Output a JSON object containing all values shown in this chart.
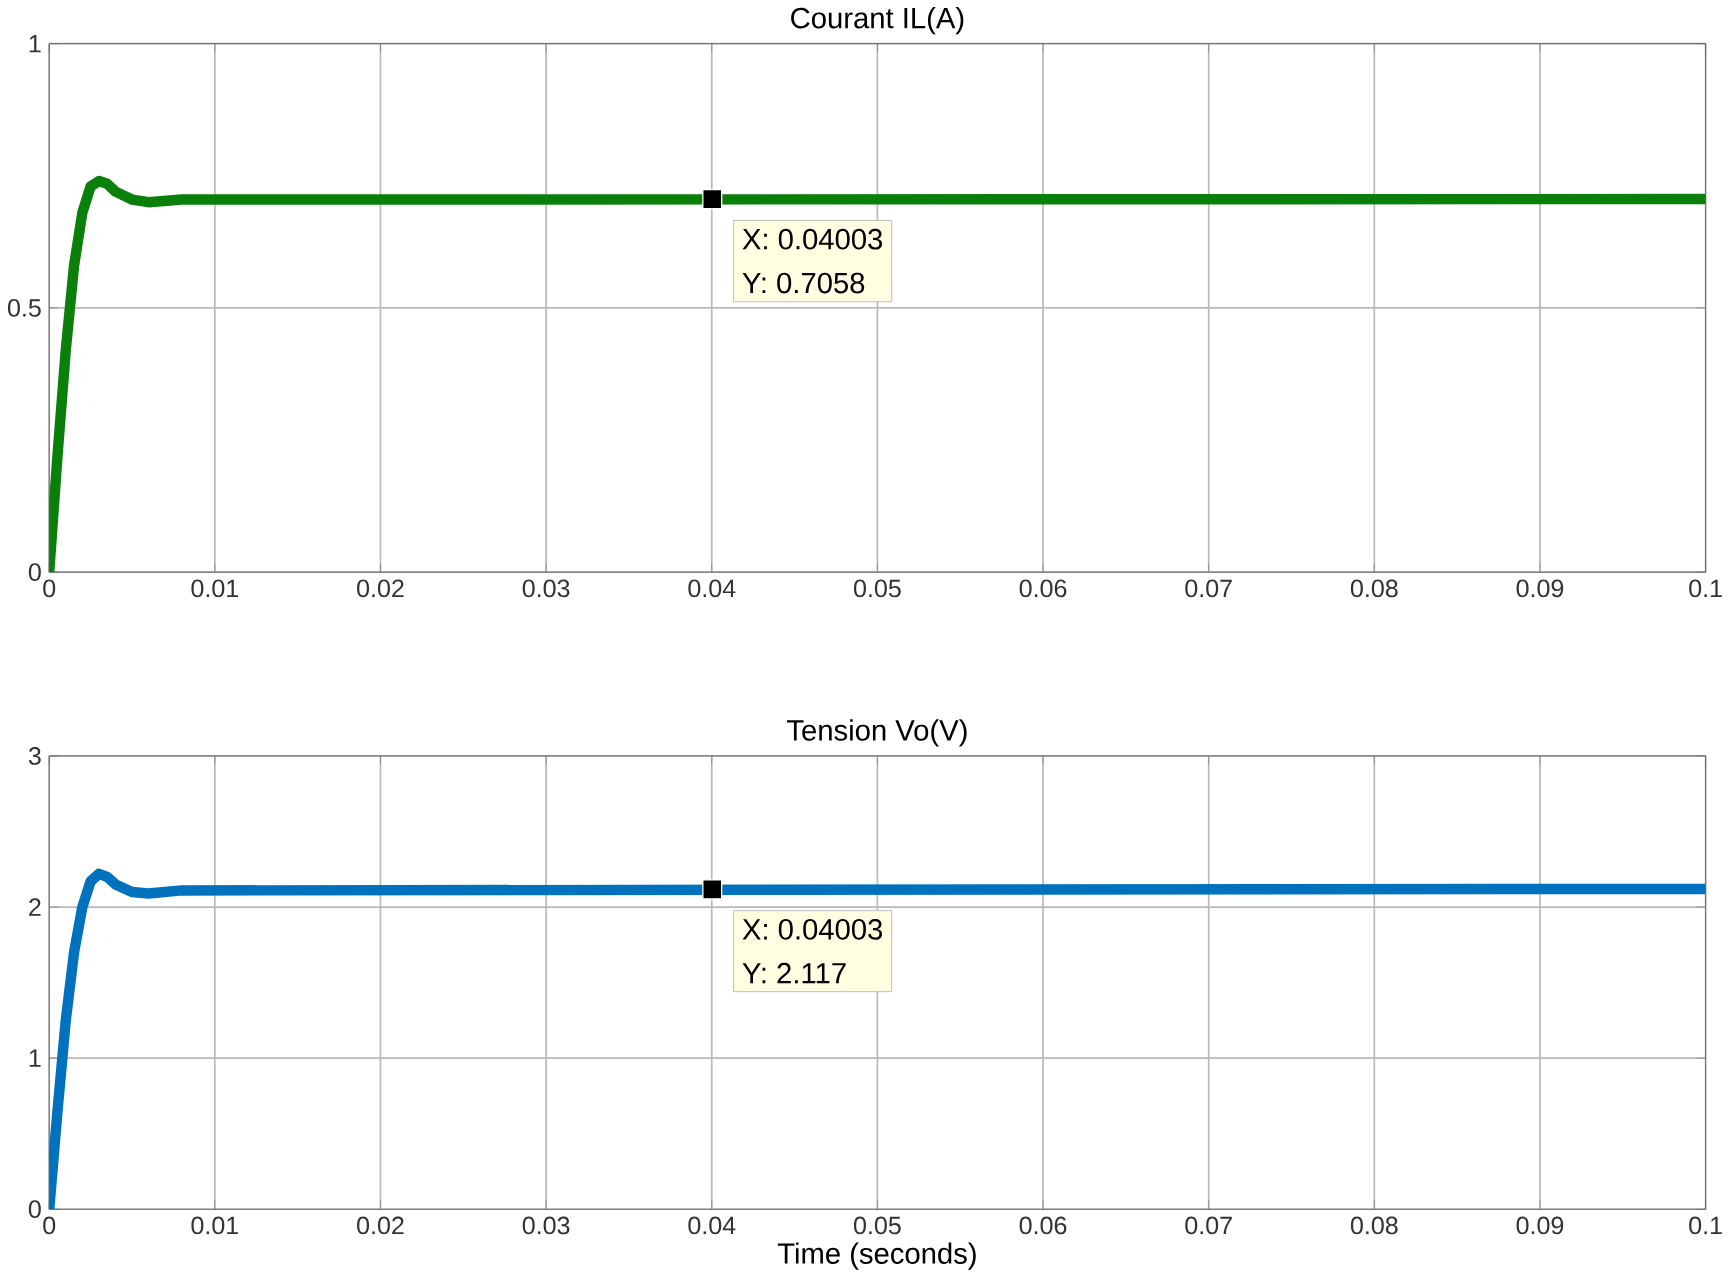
{
  "chart_data": [
    {
      "type": "line",
      "title": "Courant IL(A)",
      "x": [
        0,
        0.0005,
        0.001,
        0.0015,
        0.002,
        0.0025,
        0.003,
        0.0035,
        0.004,
        0.005,
        0.006,
        0.008,
        0.1
      ],
      "series": [
        {
          "color": "#0a800a",
          "values": [
            0,
            0.22,
            0.42,
            0.58,
            0.68,
            0.73,
            0.74,
            0.735,
            0.72,
            0.705,
            0.7,
            0.705,
            0.706
          ]
        },
        {
          "type": "scatter",
          "marker": "square",
          "color": "#000000",
          "x": [
            0.04003
          ],
          "values": [
            0.7058
          ]
        }
      ],
      "xlim": [
        0,
        0.1
      ],
      "ylim": [
        0,
        1
      ],
      "xticks": [
        0,
        0.01,
        0.02,
        0.03,
        0.04,
        0.05,
        0.06,
        0.07,
        0.08,
        0.09,
        0.1
      ],
      "yticks": [
        0,
        0.5,
        1
      ],
      "grid": true,
      "annotations": [
        "X: 0.04003",
        "Y: 0.7058"
      ]
    },
    {
      "type": "line",
      "title": "Tension Vo(V)",
      "xlabel": "Time (seconds)",
      "x": [
        0,
        0.0005,
        0.001,
        0.0015,
        0.002,
        0.0025,
        0.003,
        0.0035,
        0.004,
        0.005,
        0.006,
        0.008,
        0.1
      ],
      "series": [
        {
          "color": "#0072bd",
          "values": [
            0,
            0.65,
            1.25,
            1.7,
            2.0,
            2.17,
            2.22,
            2.2,
            2.15,
            2.1,
            2.09,
            2.11,
            2.12
          ]
        },
        {
          "type": "scatter",
          "marker": "square",
          "color": "#000000",
          "x": [
            0.04003
          ],
          "values": [
            2.117
          ]
        }
      ],
      "xlim": [
        0,
        0.1
      ],
      "ylim": [
        0,
        3
      ],
      "xticks": [
        0,
        0.01,
        0.02,
        0.03,
        0.04,
        0.05,
        0.06,
        0.07,
        0.08,
        0.09,
        0.1
      ],
      "yticks": [
        0,
        1,
        2,
        3
      ],
      "grid": true,
      "annotations": [
        "X: 0.04003",
        "Y: 2.117"
      ]
    }
  ]
}
